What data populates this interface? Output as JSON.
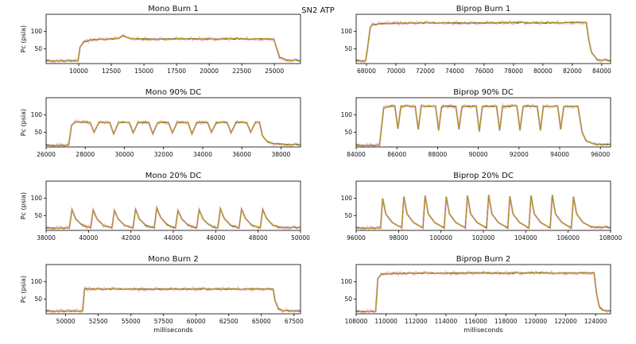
{
  "figure": {
    "suptitle": "SN2 ATP",
    "xlabel": "milliseconds",
    "ylabel": "Pc (psia)",
    "colors": {
      "line_a": "#2b5d8a",
      "line_b": "#d98a1c",
      "line_c": "#9a9a1e",
      "shade": "#f4c9dd",
      "axis": "#000000"
    }
  },
  "chart_data": [
    {
      "type": "line",
      "title": "Mono Burn 1",
      "xlim": [
        7500,
        27000
      ],
      "ylim": [
        7,
        150
      ],
      "xticks": [
        10000,
        12500,
        15000,
        17500,
        20000,
        22500,
        25000
      ],
      "xtick_labels": [
        "10000",
        "12500",
        "15000",
        "17500",
        "20000",
        "22500",
        "25000"
      ],
      "yticks": [
        50,
        100
      ],
      "ytick_labels": [
        "50",
        "100"
      ],
      "ylabel": "Pc (psia)",
      "xlabel": "",
      "x": [
        7500,
        9950,
        10100,
        10400,
        11000,
        12000,
        13000,
        13400,
        14000,
        16000,
        18000,
        20000,
        22000,
        24000,
        24950,
        25100,
        25400,
        26000,
        27000
      ],
      "y": [
        15,
        15,
        55,
        70,
        76,
        78,
        79,
        88,
        79,
        78,
        79,
        78,
        79,
        78,
        78,
        60,
        25,
        17,
        16
      ]
    },
    {
      "type": "line",
      "title": "Biprop Burn 1",
      "xlim": [
        67300,
        84600
      ],
      "ylim": [
        7,
        150
      ],
      "xticks": [
        68000,
        70000,
        72000,
        74000,
        76000,
        78000,
        80000,
        82000,
        84000
      ],
      "xtick_labels": [
        "68000",
        "70000",
        "72000",
        "74000",
        "76000",
        "78000",
        "80000",
        "82000",
        "84000"
      ],
      "yticks": [
        50,
        100
      ],
      "ytick_labels": [
        "50",
        "100"
      ],
      "ylabel": "",
      "xlabel": "",
      "x": [
        67300,
        67950,
        68100,
        68250,
        68400,
        69000,
        70000,
        72000,
        74000,
        76000,
        78000,
        80000,
        82000,
        82950,
        83100,
        83300,
        83700,
        84600
      ],
      "y": [
        15,
        15,
        60,
        110,
        120,
        123,
        124,
        125,
        125,
        125,
        126,
        125,
        126,
        126,
        80,
        40,
        18,
        16
      ]
    },
    {
      "type": "line",
      "title": "Mono 90% DC",
      "xlim": [
        26000,
        39000
      ],
      "ylim": [
        7,
        150
      ],
      "xticks": [
        26000,
        28000,
        30000,
        32000,
        34000,
        36000,
        38000
      ],
      "xtick_labels": [
        "26000",
        "28000",
        "30000",
        "32000",
        "34000",
        "36000",
        "38000"
      ],
      "yticks": [
        50,
        100
      ],
      "ytick_labels": [
        "50",
        "100"
      ],
      "ylabel": "Pc (psia)",
      "xlabel": "",
      "x": [
        26000,
        27150,
        27300,
        27500,
        28000,
        28250,
        28450,
        28700,
        29000,
        29250,
        29450,
        29700,
        30000,
        30250,
        30450,
        30700,
        31000,
        31250,
        31450,
        31700,
        32000,
        32250,
        32450,
        32700,
        33000,
        33250,
        33450,
        33700,
        34000,
        34250,
        34450,
        34700,
        35000,
        35250,
        35450,
        35700,
        36000,
        36250,
        36450,
        36700,
        36900,
        37050,
        37300,
        37700,
        38500,
        39000
      ],
      "y": [
        12,
        12,
        70,
        80,
        79,
        78,
        50,
        78,
        79,
        78,
        45,
        78,
        79,
        78,
        48,
        78,
        79,
        78,
        45,
        78,
        79,
        78,
        48,
        78,
        79,
        78,
        45,
        78,
        79,
        78,
        50,
        78,
        79,
        78,
        48,
        78,
        79,
        78,
        50,
        79,
        79,
        40,
        22,
        16,
        14,
        14
      ]
    },
    {
      "type": "line",
      "title": "Biprop 90% DC",
      "xlim": [
        84000,
        96500
      ],
      "ylim": [
        7,
        150
      ],
      "xticks": [
        84000,
        86000,
        88000,
        90000,
        92000,
        94000,
        96000
      ],
      "xtick_labels": [
        "84000",
        "86000",
        "88000",
        "90000",
        "92000",
        "94000",
        "96000"
      ],
      "yticks": [
        50,
        100
      ],
      "ytick_labels": [
        "50",
        "100"
      ],
      "ylabel": "",
      "xlabel": "",
      "x": [
        84000,
        85150,
        85350,
        85600,
        85900,
        86050,
        86200,
        86400,
        86900,
        87050,
        87200,
        87400,
        87900,
        88050,
        88200,
        88400,
        88900,
        89050,
        89200,
        89400,
        89900,
        90050,
        90200,
        90400,
        90900,
        91050,
        91200,
        91400,
        91900,
        92050,
        92200,
        92400,
        92900,
        93050,
        93200,
        93400,
        93900,
        94050,
        94200,
        94400,
        94900,
        95100,
        95300,
        95700,
        96500
      ],
      "y": [
        12,
        12,
        120,
        125,
        126,
        60,
        124,
        126,
        125,
        58,
        125,
        125,
        126,
        55,
        124,
        126,
        125,
        58,
        125,
        125,
        126,
        52,
        124,
        126,
        125,
        55,
        125,
        125,
        126,
        55,
        124,
        126,
        125,
        55,
        125,
        125,
        126,
        58,
        124,
        125,
        125,
        50,
        25,
        15,
        14
      ]
    },
    {
      "type": "line",
      "title": "Mono 20% DC",
      "xlim": [
        38000,
        50000
      ],
      "ylim": [
        7,
        150
      ],
      "xticks": [
        38000,
        40000,
        42000,
        44000,
        46000,
        48000,
        50000
      ],
      "xtick_labels": [
        "38000",
        "40000",
        "42000",
        "44000",
        "46000",
        "48000",
        "50000"
      ],
      "yticks": [
        50,
        100
      ],
      "ytick_labels": [
        "50",
        "100"
      ],
      "ylabel": "Pc (psia)",
      "xlabel": "",
      "x": [
        38000,
        39100,
        39220,
        39400,
        39700,
        40000,
        40100,
        40220,
        40400,
        40700,
        41000,
        41100,
        41220,
        41400,
        41700,
        42000,
        42100,
        42220,
        42400,
        42700,
        43000,
        43100,
        43220,
        43400,
        43700,
        44000,
        44100,
        44220,
        44400,
        44700,
        45000,
        45100,
        45220,
        45400,
        45700,
        46000,
        46100,
        46220,
        46400,
        46700,
        47000,
        47100,
        47220,
        47400,
        47700,
        48000,
        48100,
        48220,
        48400,
        48700,
        49000,
        50000
      ],
      "y": [
        14,
        14,
        68,
        40,
        22,
        16,
        14,
        66,
        40,
        22,
        16,
        14,
        65,
        40,
        22,
        16,
        14,
        68,
        40,
        22,
        16,
        14,
        72,
        45,
        24,
        16,
        14,
        65,
        40,
        22,
        16,
        14,
        67,
        40,
        22,
        16,
        14,
        70,
        42,
        22,
        16,
        14,
        69,
        42,
        22,
        16,
        14,
        68,
        42,
        22,
        16,
        15
      ]
    },
    {
      "type": "line",
      "title": "Biprop 20% DC",
      "xlim": [
        96000,
        108000
      ],
      "ylim": [
        7,
        150
      ],
      "xticks": [
        96000,
        98000,
        100000,
        102000,
        104000,
        106000,
        108000
      ],
      "xtick_labels": [
        "96000",
        "98000",
        "100000",
        "102000",
        "104000",
        "106000",
        "108000"
      ],
      "yticks": [
        50,
        100
      ],
      "ytick_labels": [
        "50",
        "100"
      ],
      "ylabel": "",
      "xlabel": "",
      "x": [
        96000,
        97150,
        97250,
        97400,
        97700,
        98100,
        98150,
        98250,
        98400,
        98700,
        99100,
        99150,
        99250,
        99400,
        99700,
        100100,
        100150,
        100250,
        100400,
        100700,
        101100,
        101150,
        101250,
        101400,
        101700,
        102100,
        102150,
        102250,
        102400,
        102700,
        103100,
        103150,
        103250,
        103400,
        103700,
        104100,
        104150,
        104250,
        104400,
        104700,
        105100,
        105150,
        105250,
        105400,
        105700,
        106100,
        106150,
        106250,
        106400,
        106700,
        107100,
        108000
      ],
      "y": [
        14,
        14,
        100,
        55,
        30,
        16,
        14,
        105,
        55,
        30,
        16,
        14,
        108,
        55,
        30,
        16,
        14,
        105,
        55,
        30,
        16,
        14,
        108,
        55,
        30,
        16,
        14,
        110,
        55,
        30,
        16,
        14,
        106,
        55,
        30,
        16,
        14,
        108,
        55,
        30,
        16,
        14,
        110,
        55,
        30,
        16,
        14,
        105,
        55,
        30,
        17,
        16
      ]
    },
    {
      "type": "line",
      "title": "Mono Burn 2",
      "xlim": [
        48500,
        68000
      ],
      "ylim": [
        7,
        150
      ],
      "xticks": [
        50000,
        52500,
        55000,
        57500,
        60000,
        62500,
        65000,
        67500
      ],
      "xtick_labels": [
        "50000",
        "52500",
        "55000",
        "57500",
        "60000",
        "62500",
        "65000",
        "67500"
      ],
      "yticks": [
        50,
        100
      ],
      "ytick_labels": [
        "50",
        "100"
      ],
      "ylabel": "Pc (psia)",
      "xlabel": "milliseconds",
      "x": [
        48500,
        51300,
        51450,
        51700,
        52500,
        55000,
        57500,
        60000,
        62500,
        65000,
        65900,
        66050,
        66300,
        66700,
        68000
      ],
      "y": [
        15,
        15,
        80,
        79,
        79,
        79,
        79,
        79,
        79,
        79,
        79,
        45,
        22,
        16,
        15
      ]
    },
    {
      "type": "line",
      "title": "Biprop Burn 2",
      "xlim": [
        108000,
        125000
      ],
      "ylim": [
        7,
        150
      ],
      "xticks": [
        108000,
        110000,
        112000,
        114000,
        116000,
        118000,
        120000,
        122000,
        124000
      ],
      "xtick_labels": [
        "108000",
        "110000",
        "112000",
        "114000",
        "116000",
        "118000",
        "120000",
        "122000",
        "124000"
      ],
      "yticks": [
        50,
        100
      ],
      "ytick_labels": [
        "50",
        "100"
      ],
      "ylabel": "",
      "xlabel": "milliseconds",
      "x": [
        108000,
        109300,
        109450,
        109700,
        110500,
        112000,
        114000,
        116000,
        118000,
        120000,
        122000,
        123900,
        124050,
        124250,
        124600,
        125000
      ],
      "y": [
        14,
        14,
        110,
        122,
        124,
        125,
        125,
        126,
        125,
        126,
        125,
        126,
        70,
        25,
        16,
        15
      ]
    }
  ]
}
